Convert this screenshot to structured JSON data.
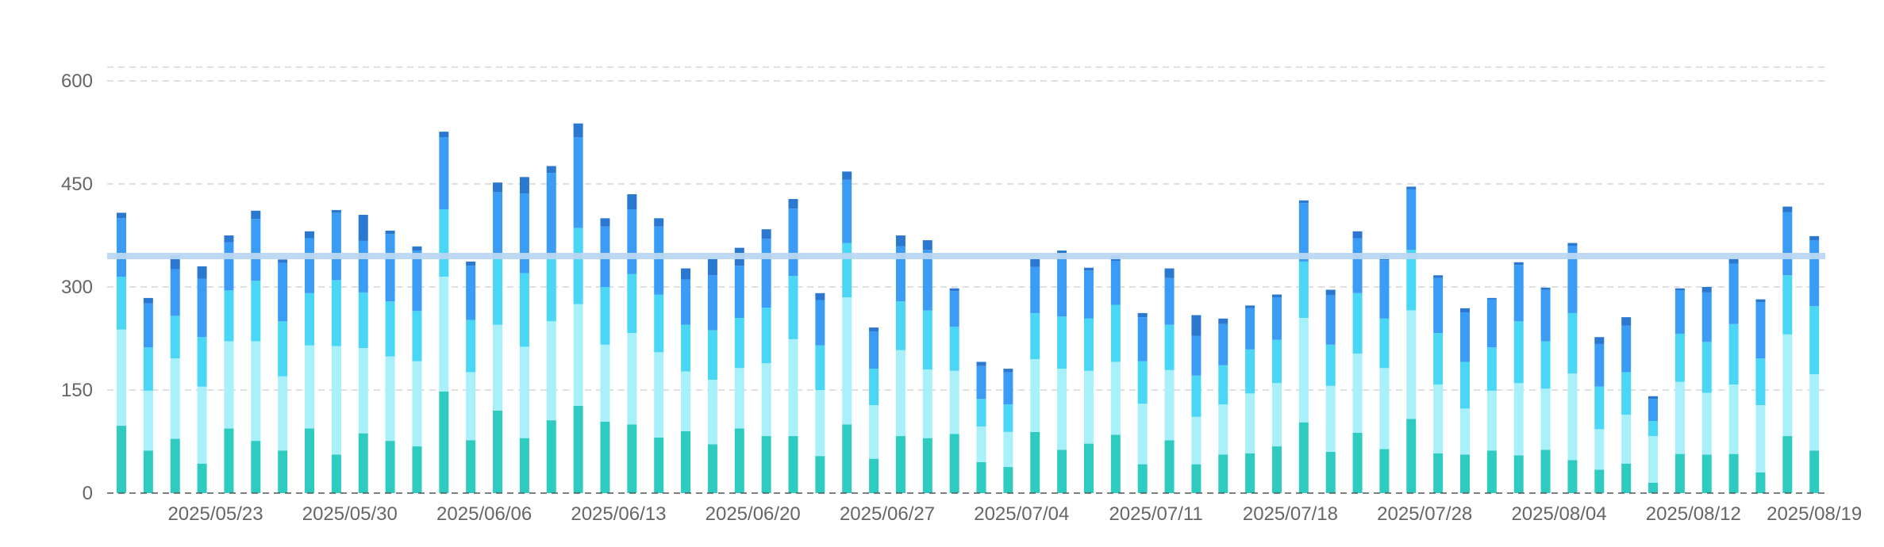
{
  "chart_data": {
    "type": "bar",
    "stacked": true,
    "title": "",
    "xlabel": "",
    "ylabel": "",
    "ylim": [
      0,
      620
    ],
    "yticks": [
      0,
      150,
      300,
      450,
      600
    ],
    "grid": true,
    "reference_line": 345,
    "x_tick_labels": [
      "2025/05/23",
      "2025/05/30",
      "2025/06/06",
      "2025/06/13",
      "2025/06/20",
      "2025/06/27",
      "2025/07/04",
      "2025/07/11",
      "2025/07/18",
      "2025/07/28",
      "2025/08/04",
      "2025/08/12",
      "2025/08/19"
    ],
    "x_tick_positions": [
      3.5,
      8.5,
      13.5,
      18.5,
      23.5,
      28.5,
      33.5,
      38.5,
      43.5,
      48.5,
      53.5,
      58.5,
      63
    ],
    "colors": [
      "#2ecbc0",
      "#a9f1fa",
      "#4ad7f5",
      "#3b9cf5",
      "#2a78d0"
    ],
    "reference_color": "#b9d7f2",
    "series": [
      {
        "values": [
          98,
          62,
          79,
          43,
          94,
          76,
          62,
          94,
          56,
          87,
          76,
          68,
          148,
          77,
          120,
          80,
          106,
          127,
          104,
          100,
          81,
          90,
          71,
          94,
          83,
          83,
          54,
          100,
          50,
          83,
          80,
          86,
          45,
          38,
          89,
          63,
          72,
          85,
          42,
          77,
          42,
          56,
          58,
          68,
          103,
          60,
          88,
          64,
          108,
          58,
          56,
          62,
          55,
          63,
          48,
          34,
          43,
          15,
          57,
          56,
          57,
          30,
          83,
          62
        ]
      },
      {
        "values": [
          140,
          87,
          117,
          112,
          127,
          145,
          108,
          121,
          158,
          124,
          123,
          124,
          167,
          99,
          125,
          133,
          144,
          148,
          112,
          133,
          124,
          87,
          94,
          88,
          106,
          141,
          96,
          185,
          78,
          125,
          100,
          92,
          52,
          51,
          106,
          118,
          106,
          106,
          88,
          102,
          69,
          73,
          87,
          92,
          152,
          96,
          115,
          118,
          158,
          100,
          67,
          87,
          105,
          89,
          126,
          59,
          71,
          68,
          105,
          90,
          101,
          98,
          148,
          111
        ]
      },
      {
        "values": [
          77,
          63,
          62,
          72,
          74,
          88,
          80,
          76,
          96,
          81,
          80,
          73,
          98,
          76,
          97,
          107,
          98,
          111,
          84,
          86,
          84,
          68,
          72,
          73,
          81,
          92,
          65,
          79,
          53,
          71,
          86,
          64,
          40,
          40,
          67,
          76,
          76,
          83,
          62,
          66,
          60,
          57,
          64,
          63,
          82,
          60,
          88,
          72,
          88,
          75,
          68,
          63,
          90,
          69,
          88,
          62,
          62,
          22,
          70,
          74,
          88,
          68,
          86,
          99
        ]
      },
      {
        "values": [
          85,
          64,
          68,
          85,
          70,
          90,
          85,
          80,
          98,
          75,
          98,
          88,
          105,
          79,
          96,
          116,
          118,
          132,
          88,
          94,
          99,
          66,
          80,
          76,
          100,
          98,
          66,
          92,
          54,
          80,
          88,
          52,
          48,
          47,
          67,
          90,
          70,
          64,
          64,
          68,
          58,
          60,
          60,
          62,
          85,
          72,
          80,
          85,
          88,
          80,
          72,
          70,
          82,
          75,
          98,
          62,
          68,
          32,
          63,
          72,
          88,
          82,
          92,
          96
        ]
      },
      {
        "values": [
          8,
          8,
          20,
          18,
          10,
          12,
          5,
          10,
          4,
          38,
          5,
          6,
          8,
          6,
          14,
          24,
          10,
          20,
          12,
          22,
          12,
          16,
          24,
          26,
          14,
          14,
          10,
          12,
          6,
          16,
          14,
          4,
          6,
          5,
          12,
          6,
          4,
          8,
          6,
          14,
          30,
          8,
          4,
          4,
          4,
          8,
          10,
          8,
          4,
          4,
          6,
          2,
          4,
          3,
          4,
          10,
          12,
          4,
          3,
          8,
          8,
          4,
          8,
          6
        ]
      }
    ]
  }
}
